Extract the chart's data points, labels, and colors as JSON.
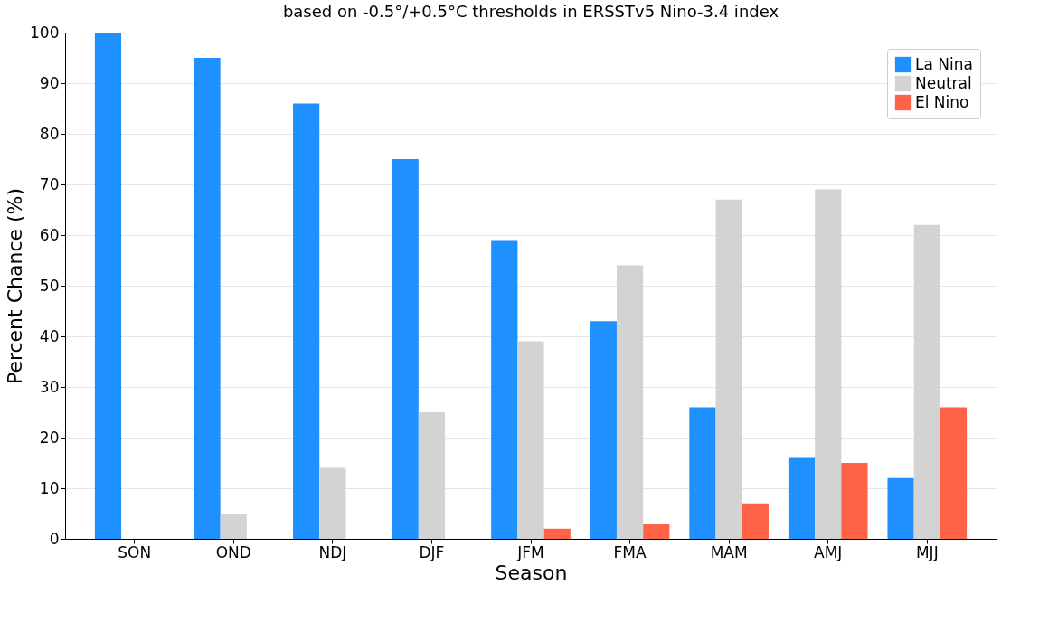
{
  "chart_data": {
    "type": "bar",
    "title": "based on -0.5°/+0.5°C thresholds in ERSSTv5 Nino-3.4 index",
    "xlabel": "Season",
    "ylabel": "Percent Chance (%)",
    "categories": [
      "SON",
      "OND",
      "NDJ",
      "DJF",
      "JFM",
      "FMA",
      "MAM",
      "AMJ",
      "MJJ"
    ],
    "series": [
      {
        "name": "La Nina",
        "color": "#1e90ff",
        "values": [
          100,
          95,
          86,
          75,
          59,
          43,
          26,
          16,
          12
        ]
      },
      {
        "name": "Neutral",
        "color": "#d3d3d3",
        "values": [
          0,
          5,
          14,
          25,
          39,
          54,
          67,
          69,
          62
        ]
      },
      {
        "name": "El Nino",
        "color": "#ff6347",
        "values": [
          0,
          0,
          0,
          0,
          2,
          3,
          7,
          15,
          26
        ]
      }
    ],
    "ylim": [
      0,
      100
    ],
    "yticks": [
      0,
      10,
      20,
      30,
      40,
      50,
      60,
      70,
      80,
      90,
      100
    ],
    "grid": "y",
    "legend": "top right"
  }
}
